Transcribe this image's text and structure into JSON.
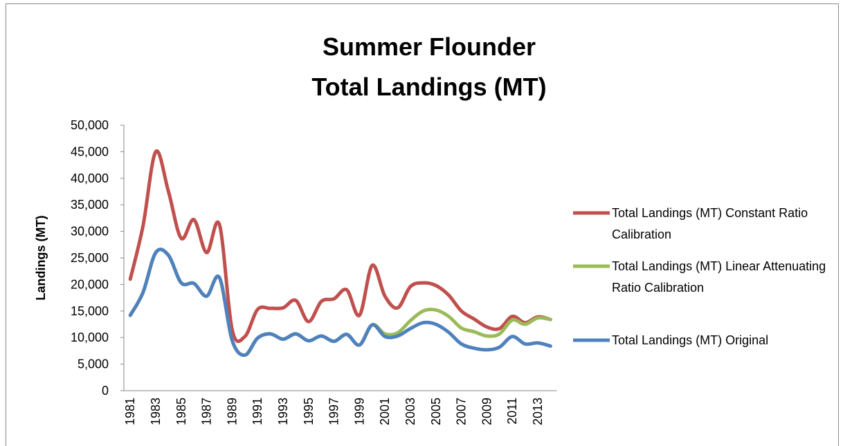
{
  "chart_data": {
    "type": "line",
    "title": [
      "Summer Flounder",
      "Total Landings (MT)"
    ],
    "y_label": "Landings (MT)",
    "categories": [
      "1981",
      null,
      "1983",
      null,
      "1985",
      null,
      "1987",
      null,
      "1989",
      null,
      "1991",
      null,
      "1993",
      null,
      "1995",
      null,
      "1997",
      null,
      "1999",
      null,
      "2001",
      null,
      "2003",
      null,
      "2005",
      null,
      "2007",
      null,
      "2009",
      null,
      "2011",
      null,
      "2013",
      null
    ],
    "series": [
      {
        "name": "Total Landings (MT) Constant Ratio Calibration",
        "color": "#c0504d",
        "values": [
          21000,
          31000,
          45000,
          37500,
          28700,
          32200,
          26000,
          31300,
          11500,
          10200,
          15300,
          15500,
          15600,
          17000,
          13000,
          16800,
          17300,
          19000,
          14200,
          23600,
          17800,
          15600,
          19600,
          20300,
          19800,
          18000,
          15000,
          13500,
          12000,
          11700,
          14000,
          12800,
          13900,
          13400
        ]
      },
      {
        "name": "Total Landings (MT) Linear Attenuating Ratio Calibration",
        "color": "#9bbb59",
        "values": [
          14200,
          18500,
          26000,
          25500,
          20300,
          20200,
          17800,
          21300,
          9500,
          6700,
          9900,
          10700,
          9700,
          10700,
          9400,
          10300,
          9300,
          10600,
          8600,
          12400,
          10700,
          10900,
          13200,
          15000,
          15200,
          14000,
          11800,
          11100,
          10300,
          10700,
          13300,
          12500,
          13700,
          13400
        ]
      },
      {
        "name": "Total Landings (MT) Original",
        "color": "#4f81bd",
        "values": [
          14200,
          18500,
          26000,
          25500,
          20300,
          20200,
          17800,
          21300,
          9500,
          6700,
          9900,
          10700,
          9700,
          10700,
          9400,
          10300,
          9300,
          10600,
          8600,
          12400,
          10200,
          10300,
          11700,
          12800,
          12500,
          11000,
          8800,
          8000,
          7700,
          8200,
          10200,
          8800,
          9000,
          8400
        ]
      }
    ],
    "ylim": [
      0,
      50000
    ],
    "yticks": [
      0,
      {
        "value": 5000,
        "label": "5,000"
      },
      {
        "value": 10000,
        "label": "10,000"
      },
      {
        "value": 15000,
        "label": "15,000"
      },
      {
        "value": 20000,
        "label": "20,000"
      },
      {
        "value": 25000,
        "label": "25,000"
      },
      {
        "value": 30000,
        "label": "30,000"
      },
      {
        "value": 35000,
        "label": "35,000"
      },
      {
        "value": 40000,
        "label": "40,000"
      },
      {
        "value": 45000,
        "label": "45,000"
      },
      {
        "value": 50000,
        "label": "50,000"
      }
    ],
    "grid": false,
    "legend": "right"
  }
}
